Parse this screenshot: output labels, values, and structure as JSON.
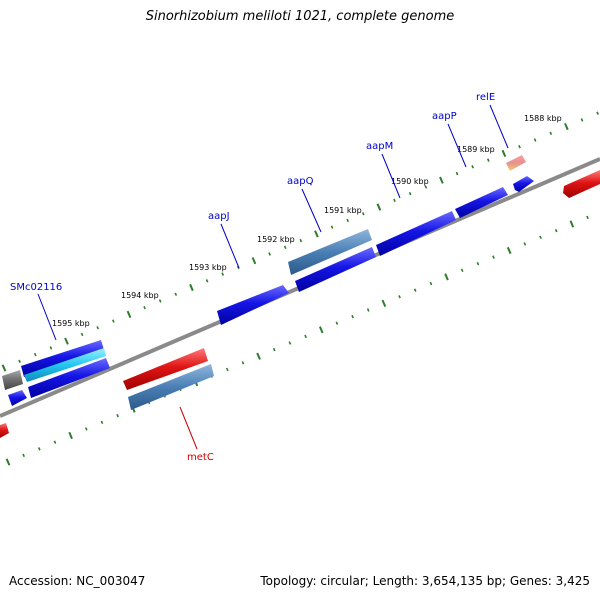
{
  "title": "Sinorhizobium meliloti 1021, complete genome",
  "footer": {
    "accession": "Accession: NC_003047",
    "topology": "Topology: circular; Length: 3,654,135 bp; Genes: 3,425"
  },
  "colors": {
    "backbone": "#8a8a8a",
    "tick": "#2e7d2e",
    "forward_gene": "#1515e6",
    "highlight_gene": "#4a7fb5",
    "reverse_gene": "#e01515",
    "cyan_gene": "#22c6f0",
    "label_forward": "#0000cc",
    "label_reverse": "#cc0000"
  },
  "ticks": {
    "outer": [
      "1588 kbp",
      "1589 kbp",
      "1590 kbp",
      "1591 kbp",
      "1592 kbp",
      "1593 kbp",
      "1594 kbp",
      "1595 kbp"
    ]
  },
  "genes": [
    {
      "name": "relE",
      "strand": "forward"
    },
    {
      "name": "aapP",
      "strand": "forward"
    },
    {
      "name": "aapM",
      "strand": "forward"
    },
    {
      "name": "aapQ",
      "strand": "forward"
    },
    {
      "name": "aapJ",
      "strand": "forward"
    },
    {
      "name": "SMc02116",
      "strand": "forward"
    },
    {
      "name": "metC",
      "strand": "reverse"
    }
  ]
}
